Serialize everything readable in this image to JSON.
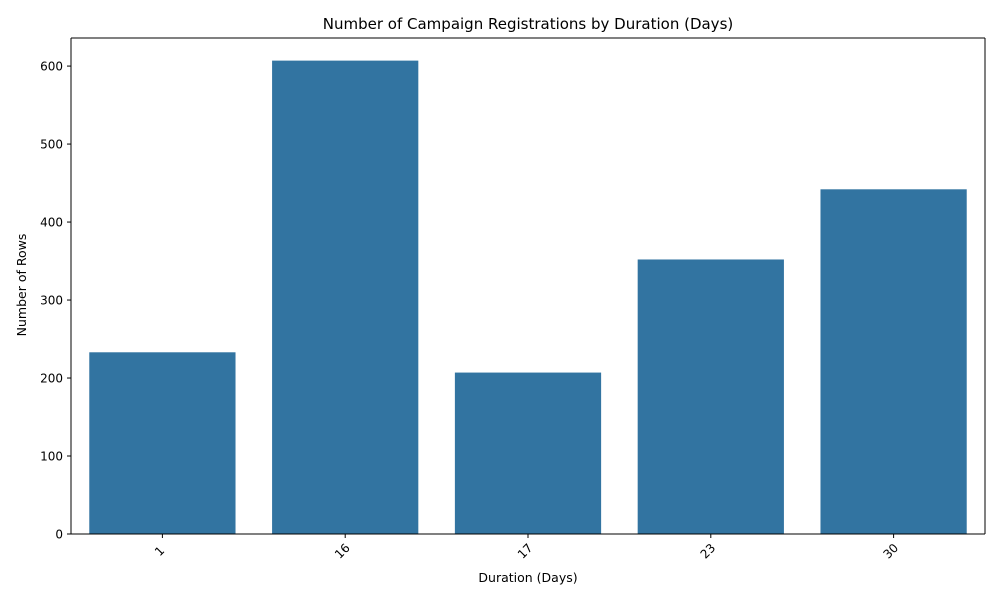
{
  "chart_data": {
    "type": "bar",
    "title": "Number of Campaign Registrations by Duration (Days)",
    "xlabel": "Duration (Days)",
    "ylabel": "Number of Rows",
    "categories": [
      "1",
      "16",
      "17",
      "23",
      "30"
    ],
    "values": [
      233,
      607,
      207,
      352,
      442
    ],
    "ylim": [
      0,
      636
    ],
    "yticks": [
      0,
      100,
      200,
      300,
      400,
      500,
      600
    ],
    "grid": false,
    "legend": "none",
    "bar_color": "#3274a1",
    "x_tick_rotation": 45
  }
}
